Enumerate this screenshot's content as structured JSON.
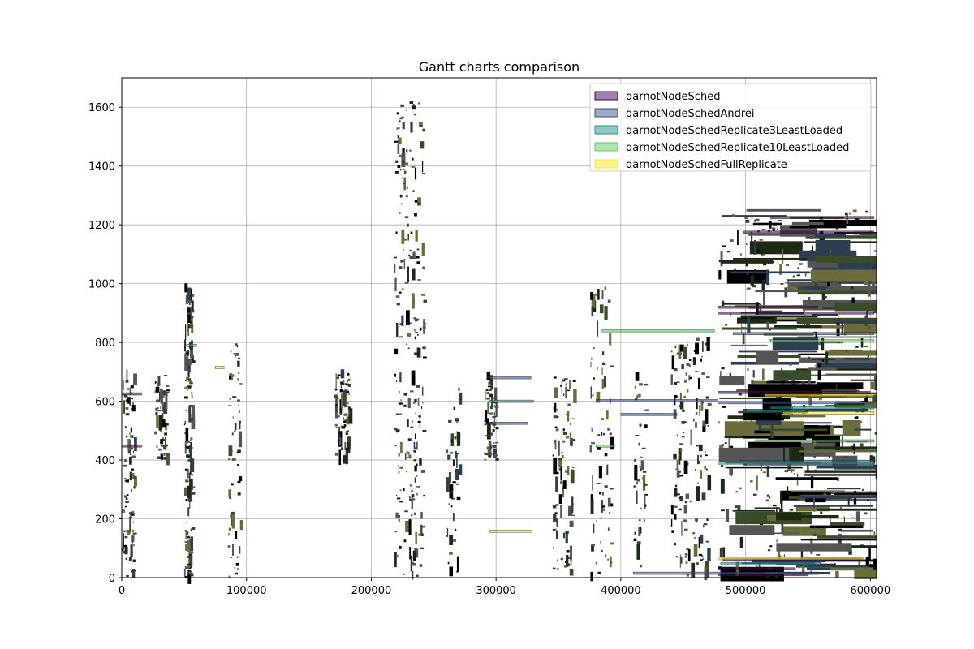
{
  "chart_data": {
    "type": "gantt",
    "title": "Gantt charts comparison",
    "xlabel": "",
    "ylabel": "",
    "xlim": [
      0,
      605000
    ],
    "ylim": [
      0,
      1700
    ],
    "x_ticks": [
      0,
      100000,
      200000,
      300000,
      400000,
      500000,
      600000
    ],
    "x_tick_labels": [
      "0",
      "100000",
      "200000",
      "300000",
      "400000",
      "500000",
      "600000"
    ],
    "y_ticks": [
      0,
      200,
      400,
      600,
      800,
      1000,
      1200,
      1400,
      1600
    ],
    "y_tick_labels": [
      "0",
      "200",
      "400",
      "600",
      "800",
      "1000",
      "1200",
      "1400",
      "1600"
    ],
    "grid": true,
    "legend_position": "upper right",
    "series": [
      {
        "name": "qarnotNodeSched",
        "color": "#440154",
        "bars": [
          {
            "start": 0,
            "end": 16000,
            "node": 625
          },
          {
            "start": 0,
            "end": 16000,
            "node": 448
          },
          {
            "start": 478000,
            "end": 558000,
            "node": 920
          },
          {
            "start": 478000,
            "end": 603000,
            "node": 900
          },
          {
            "start": 478000,
            "end": 600000,
            "node": 630
          },
          {
            "start": 478000,
            "end": 550000,
            "node": 10
          },
          {
            "start": 478000,
            "end": 540000,
            "node": 30
          },
          {
            "start": 482000,
            "end": 595000,
            "node": 62
          },
          {
            "start": 498000,
            "end": 603000,
            "node": 1175
          },
          {
            "start": 520000,
            "end": 603000,
            "node": 1225
          }
        ]
      },
      {
        "name": "qarnotNodeSchedAndrei",
        "color": "#3b528b",
        "bars": [
          {
            "start": 498000,
            "end": 603000,
            "node": 385
          },
          {
            "start": 495000,
            "end": 603000,
            "node": 395
          },
          {
            "start": 478000,
            "end": 603000,
            "node": 595
          },
          {
            "start": 410000,
            "end": 558000,
            "node": 15
          },
          {
            "start": 380000,
            "end": 478000,
            "node": 602
          },
          {
            "start": 490000,
            "end": 603000,
            "node": 830
          },
          {
            "start": 295000,
            "end": 328000,
            "node": 680
          },
          {
            "start": 295000,
            "end": 325000,
            "node": 525
          },
          {
            "start": 400000,
            "end": 445000,
            "node": 555
          }
        ]
      },
      {
        "name": "qarnotNodeSchedReplicate3LeastLoaded",
        "color": "#21918c",
        "bars": [
          {
            "start": 520000,
            "end": 603000,
            "node": 578
          },
          {
            "start": 478000,
            "end": 603000,
            "node": 390
          },
          {
            "start": 498000,
            "end": 548000,
            "node": 565
          },
          {
            "start": 480000,
            "end": 560000,
            "node": 48
          },
          {
            "start": 295000,
            "end": 330000,
            "node": 600
          }
        ]
      },
      {
        "name": "qarnotNodeSchedReplicate10LeastLoaded",
        "color": "#5ec962",
        "bars": [
          {
            "start": 520000,
            "end": 603000,
            "node": 805
          },
          {
            "start": 385000,
            "end": 475000,
            "node": 840
          },
          {
            "start": 52000,
            "end": 60000,
            "node": 790
          },
          {
            "start": 380000,
            "end": 395000,
            "node": 448
          },
          {
            "start": 508000,
            "end": 603000,
            "node": 465
          }
        ]
      },
      {
        "name": "qarnotNodeSchedFullReplicate",
        "color": "#fde725",
        "bars": [
          {
            "start": 530000,
            "end": 603000,
            "node": 560
          },
          {
            "start": 295000,
            "end": 328000,
            "node": 158
          },
          {
            "start": 478000,
            "end": 595000,
            "node": 65
          },
          {
            "start": 75000,
            "end": 82000,
            "node": 715
          },
          {
            "start": 515000,
            "end": 603000,
            "node": 620
          }
        ]
      }
    ]
  }
}
